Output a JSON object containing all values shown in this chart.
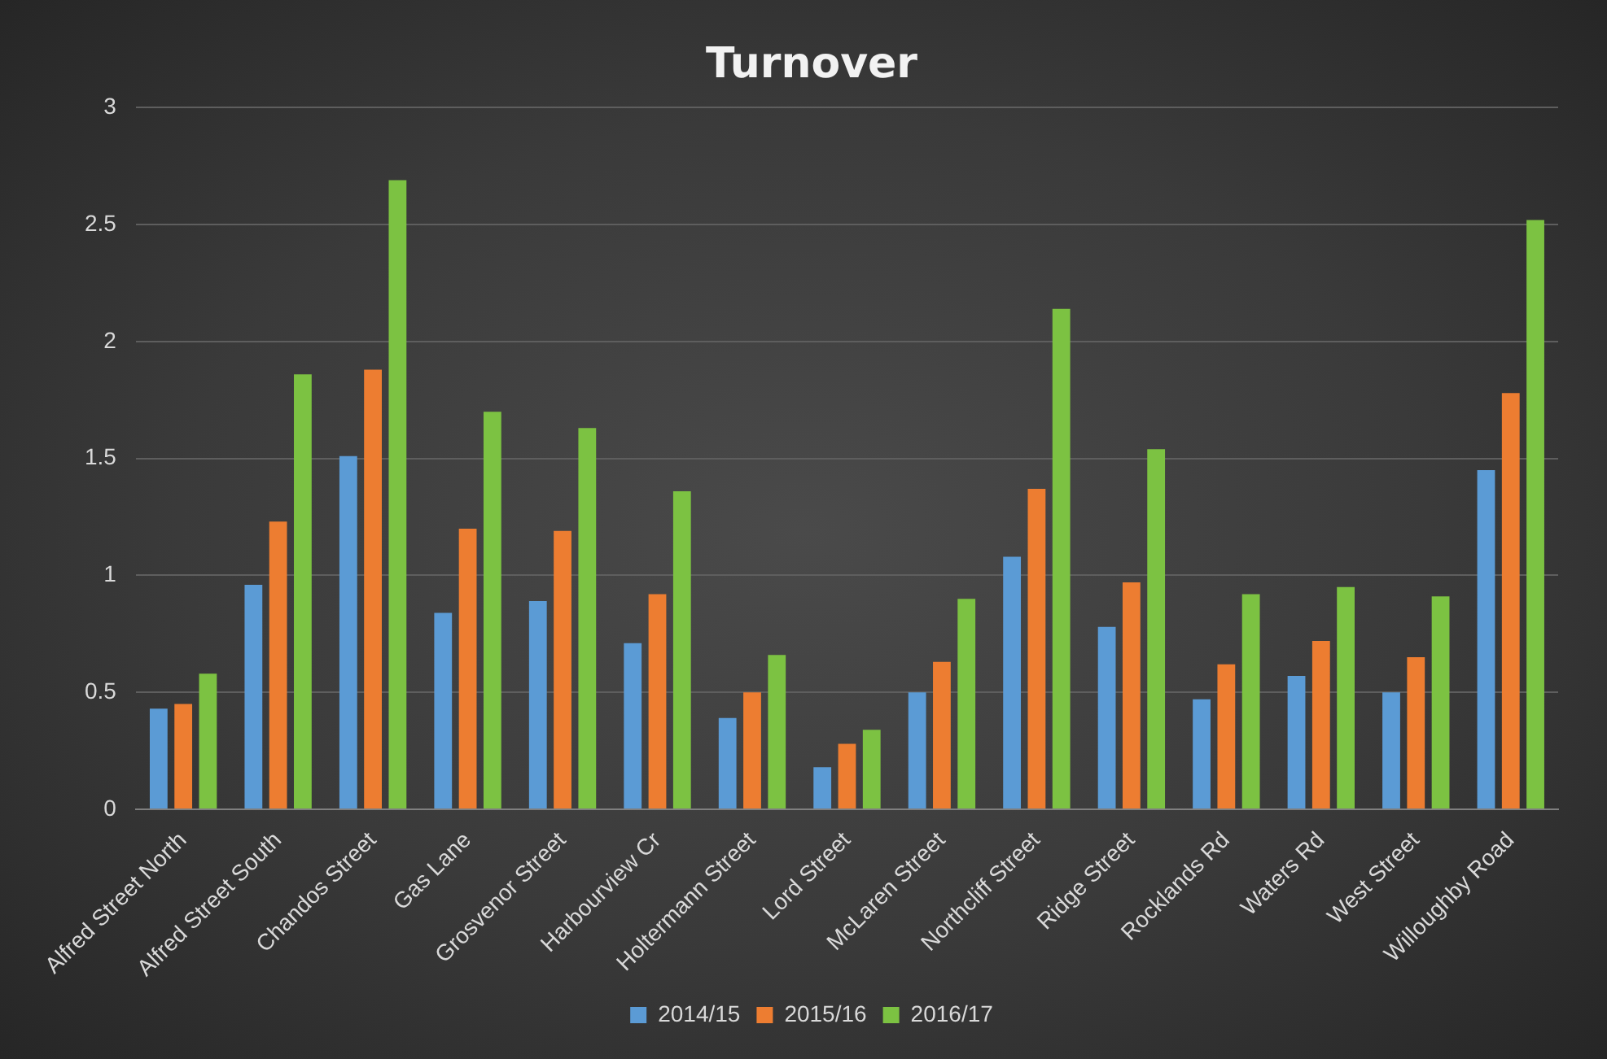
{
  "chart_data": {
    "type": "bar",
    "title": "Turnover",
    "categories": [
      "Alfred Street North",
      "Alfred Street South",
      "Chandos Street",
      "Gas Lane",
      "Grosvenor Street",
      "Harbourview Cr",
      "Holtermann Street",
      "Lord Street",
      "McLaren Street",
      "Northcliff Street",
      "Ridge Street",
      "Rocklands Rd",
      "Waters Rd",
      "West Street",
      "Willoughby Road"
    ],
    "series": [
      {
        "name": "2014/15",
        "color": "#5b9bd5",
        "values": [
          0.43,
          0.96,
          1.51,
          0.84,
          0.89,
          0.71,
          0.39,
          0.18,
          0.5,
          1.08,
          0.78,
          0.47,
          0.57,
          0.5,
          1.45
        ]
      },
      {
        "name": "2015/16",
        "color": "#ed7d31",
        "values": [
          0.45,
          1.23,
          1.88,
          1.2,
          1.19,
          0.92,
          0.5,
          0.28,
          0.63,
          1.37,
          0.97,
          0.62,
          0.72,
          0.65,
          1.78
        ]
      },
      {
        "name": "2016/17",
        "color": "#7cc242",
        "values": [
          0.58,
          1.86,
          2.69,
          1.7,
          1.63,
          1.36,
          0.66,
          0.34,
          0.9,
          2.14,
          1.54,
          0.92,
          0.95,
          0.91,
          2.52
        ]
      }
    ],
    "ylim": [
      0,
      3
    ],
    "yticks": [
      0,
      0.5,
      1,
      1.5,
      2,
      2.5,
      3
    ],
    "grid": "y",
    "legend": "bottom"
  }
}
